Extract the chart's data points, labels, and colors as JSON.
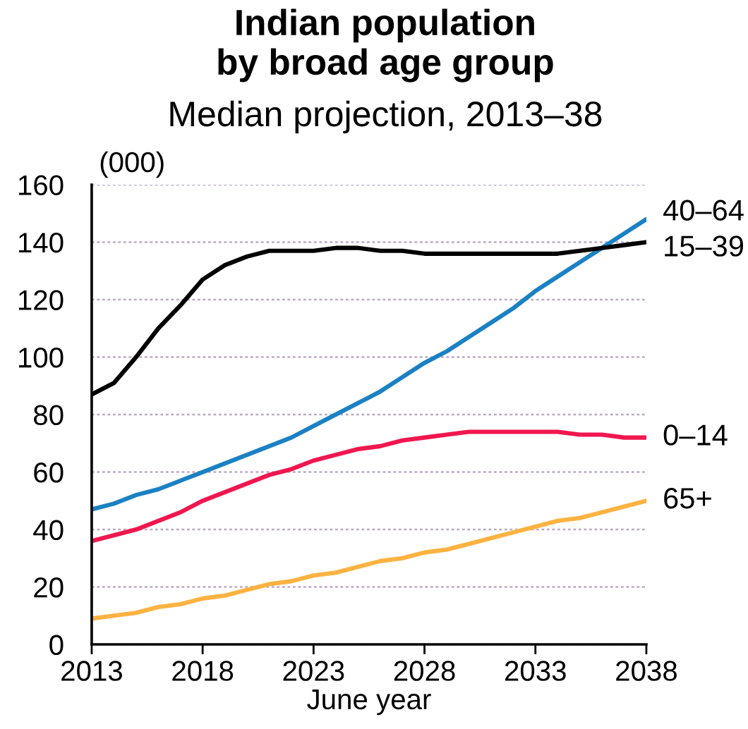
{
  "chart_data": {
    "type": "line",
    "title": "Indian population\nby broad age group",
    "subtitle": "Median projection, 2013–38",
    "xlabel": "June year",
    "ylabel": "(000)",
    "x": [
      2013,
      2014,
      2015,
      2016,
      2017,
      2018,
      2019,
      2020,
      2021,
      2022,
      2023,
      2024,
      2025,
      2026,
      2027,
      2028,
      2029,
      2030,
      2031,
      2032,
      2033,
      2034,
      2035,
      2036,
      2037,
      2038
    ],
    "series": [
      {
        "name": "40–64",
        "color": "#1b81c4",
        "values": [
          47,
          49,
          52,
          54,
          57,
          60,
          63,
          66,
          69,
          72,
          76,
          80,
          84,
          88,
          93,
          98,
          102,
          107,
          112,
          117,
          123,
          128,
          133,
          138,
          143,
          148
        ]
      },
      {
        "name": "15–39",
        "color": "#000000",
        "values": [
          87,
          91,
          100,
          110,
          118,
          127,
          132,
          135,
          137,
          137,
          137,
          138,
          138,
          137,
          137,
          136,
          136,
          136,
          136,
          136,
          136,
          136,
          137,
          138,
          139,
          140
        ]
      },
      {
        "name": "0–14",
        "color": "#f0174f",
        "values": [
          36,
          38,
          40,
          43,
          46,
          50,
          53,
          56,
          59,
          61,
          64,
          66,
          68,
          69,
          71,
          72,
          73,
          74,
          74,
          74,
          74,
          74,
          73,
          73,
          72,
          72
        ]
      },
      {
        "name": "65+",
        "color": "#fdb241",
        "values": [
          9,
          10,
          11,
          13,
          14,
          16,
          17,
          19,
          21,
          22,
          24,
          25,
          27,
          29,
          30,
          32,
          33,
          35,
          37,
          39,
          41,
          43,
          44,
          46,
          48,
          50
        ]
      }
    ],
    "xlim": [
      2013,
      2038
    ],
    "ylim": [
      0,
      160
    ],
    "xticks": [
      2013,
      2018,
      2023,
      2028,
      2033,
      2038
    ],
    "yticks": [
      0,
      20,
      40,
      60,
      80,
      100,
      120,
      140,
      160
    ],
    "grid": "y"
  }
}
